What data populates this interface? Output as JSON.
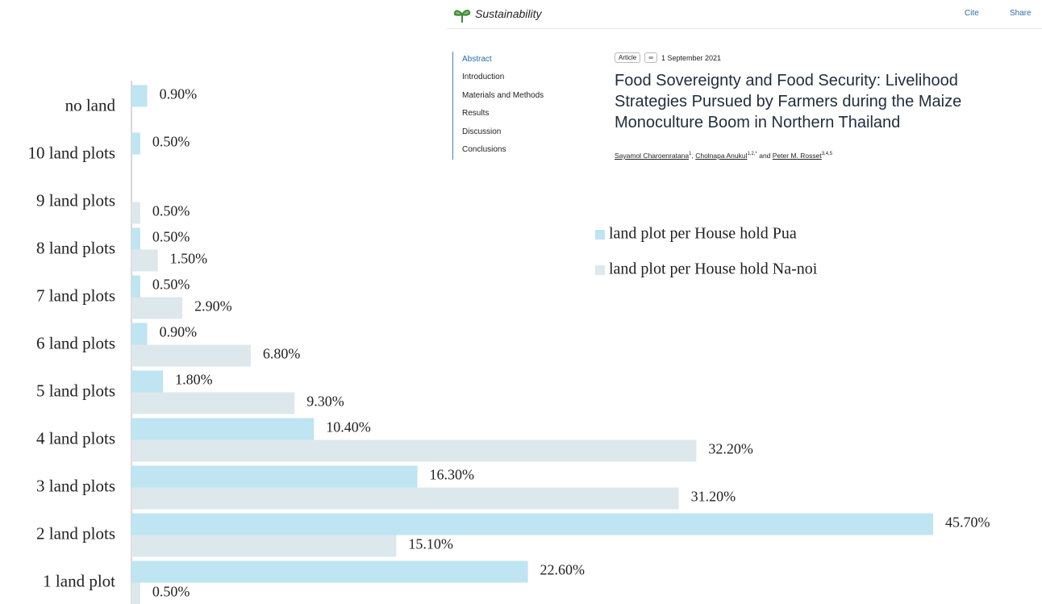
{
  "chart_data": {
    "type": "hbar",
    "categories": [
      "no land",
      "10 land plots",
      "9 land plots",
      "8 land plots",
      "7 land plots",
      "6 land plots",
      "5 land plots",
      "4 land plots",
      "3 land plots",
      "2 land plots",
      "1 land plot"
    ],
    "series": [
      {
        "name": "land plot per House hold Pua",
        "color": "#bfe4f2",
        "values": [
          0.9,
          0.5,
          null,
          0.5,
          0.5,
          0.9,
          1.8,
          10.4,
          16.3,
          45.7,
          22.6
        ],
        "value_labels": [
          "0.90%",
          "0.50%",
          null,
          "0.50%",
          "0.50%",
          "0.90%",
          "1.80%",
          "10.40%",
          "16.30%",
          "45.70%",
          "22.60%"
        ]
      },
      {
        "name": "land plot per House hold Na-noi",
        "color": "#dde8ec",
        "values": [
          null,
          null,
          0.5,
          1.5,
          2.9,
          6.8,
          9.3,
          32.2,
          31.2,
          15.1,
          0.5
        ],
        "value_labels": [
          null,
          null,
          "0.50%",
          "1.50%",
          "2.90%",
          "6.80%",
          "9.30%",
          "32.20%",
          "31.20%",
          "15.10%",
          "0.50%"
        ]
      }
    ]
  },
  "article": {
    "journal": "Sustainability",
    "cite": "Cite",
    "share": "Share",
    "nav": [
      "Abstract",
      "Introduction",
      "Materials and Methods",
      "Results",
      "Discussion",
      "Conclusions"
    ],
    "badge": "Article",
    "date": "1 September 2021",
    "title": "Food Sovereignty and Food Security: Livelihood Strategies Pursued by Farmers during the Maize Monoculture Boom in Northern Thailand",
    "authors": [
      {
        "name": "Sayamol Charoenratana",
        "aff": "1"
      },
      {
        "name": "Cholnapa Anukul",
        "aff": "1,2,*"
      },
      {
        "name": "Peter M. Rosset",
        "aff": "3,4,5"
      }
    ],
    "and": "and"
  }
}
